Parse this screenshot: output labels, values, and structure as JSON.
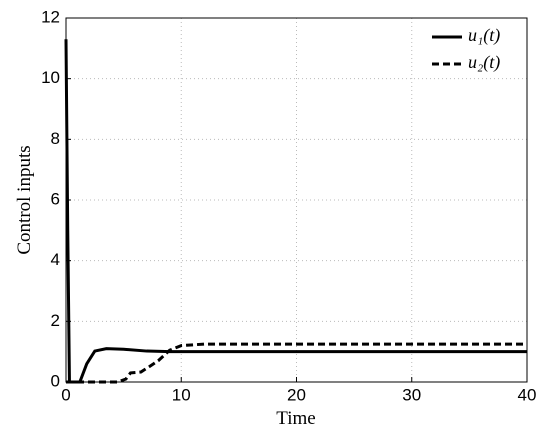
{
  "chart_data": {
    "type": "line",
    "xlabel": "Time",
    "ylabel": "Control inputs",
    "xlim": [
      0,
      40
    ],
    "xticks": [
      0,
      10,
      20,
      30,
      40
    ],
    "ylim": [
      0,
      12
    ],
    "yticks": [
      0,
      2,
      4,
      6,
      8,
      10,
      12
    ],
    "grid": true,
    "legend": "northeast",
    "series": [
      {
        "name": "u₁(t)",
        "color": "#000000",
        "dash": "solid",
        "x": [
          0,
          0.15,
          0.3,
          1.2,
          1.8,
          2.5,
          3.5,
          5,
          7,
          9,
          12,
          40
        ],
        "values": [
          11.3,
          5,
          0,
          0,
          0.6,
          1.02,
          1.1,
          1.08,
          1.02,
          1.0,
          1.0,
          1.0
        ]
      },
      {
        "name": "u₂(t)",
        "color": "#000000",
        "dash": "dashed",
        "x": [
          0,
          4.5,
          5.2,
          5.6,
          6.5,
          7.2,
          8,
          9,
          10,
          12,
          40
        ],
        "values": [
          0,
          0,
          0.1,
          0.3,
          0.33,
          0.5,
          0.7,
          1.05,
          1.2,
          1.25,
          1.25
        ]
      }
    ]
  }
}
